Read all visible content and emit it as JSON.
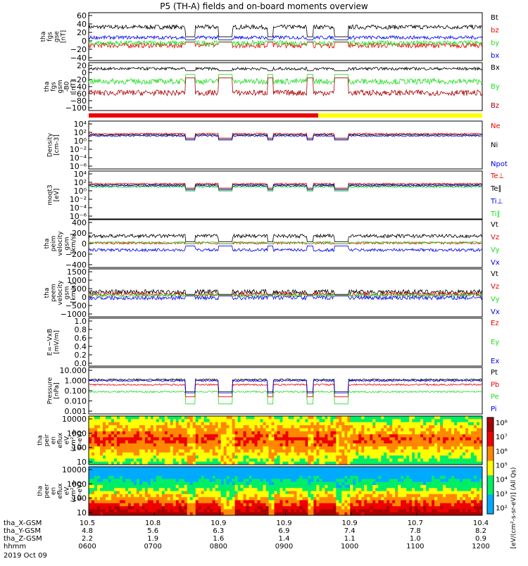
{
  "title": "P5 (TH-A) fields and on-board moments overview",
  "date_label": "2019 Oct 09",
  "colors": {
    "black": "#000000",
    "red": "#ee0000",
    "green": "#22dd22",
    "blue": "#0000ee",
    "darkred": "#aa0000",
    "yellow": "#ffff00"
  },
  "chart_data": [
    {
      "type": "line",
      "id": "fgs",
      "ylabel": [
        "tha",
        "fgs",
        "gse",
        "[nT]"
      ],
      "yticks": [
        "60",
        "40",
        "20",
        "0",
        "−20",
        "−40"
      ],
      "ylim": [
        -45,
        65
      ],
      "series": [
        {
          "name": "Bt",
          "color": "black",
          "level": 32,
          "amp": 5
        },
        {
          "name": "bz",
          "color": "red",
          "level": -10,
          "amp": 6
        },
        {
          "name": "by",
          "color": "green",
          "level": -5,
          "amp": 6
        },
        {
          "name": "bx",
          "color": "blue",
          "level": 8,
          "amp": 4
        }
      ]
    },
    {
      "type": "line",
      "id": "fgs-gsm",
      "ylabel": [
        "tha",
        "fgs",
        "gsm",
        "-B0",
        "[nT]"
      ],
      "yticks": [
        "20",
        "0",
        "−20",
        "−40",
        "−60",
        "−80",
        "−100"
      ],
      "ylim": [
        -110,
        25
      ],
      "series": [
        {
          "name": "Bx",
          "color": "black",
          "level": 8,
          "amp": 4
        },
        {
          "name": "By",
          "color": "green",
          "level": -28,
          "amp": 8
        },
        {
          "name": "Bz",
          "color": "darkred",
          "level": -60,
          "amp": 8
        }
      ]
    },
    {
      "type": "bar",
      "id": "mode-bar",
      "segments": [
        {
          "from": "0600",
          "to": "0930",
          "color": "red"
        },
        {
          "from": "0930",
          "to": "1200",
          "color": "yellow"
        }
      ]
    },
    {
      "type": "line",
      "id": "density",
      "scale": "log",
      "ylabel": [
        "Density",
        "[cm-3]"
      ],
      "yticks": [
        "10⁴",
        "10²",
        "10⁰",
        "10⁻²",
        "10⁻⁴",
        "10⁻⁶"
      ],
      "series": [
        {
          "name": "Ne",
          "color": "red"
        },
        {
          "name": "Ni",
          "color": "black"
        },
        {
          "name": "Npot",
          "color": "blue"
        }
      ]
    },
    {
      "type": "line",
      "id": "temperature",
      "scale": "log",
      "ylabel": [
        "moqt3",
        "[eV]"
      ],
      "yticks": [
        "10⁴",
        "10²",
        "10⁰",
        "10⁻²",
        "10⁻⁴",
        "10⁻⁶"
      ],
      "series": [
        {
          "name": "Te⊥",
          "color": "red"
        },
        {
          "name": "Te∥",
          "color": "black"
        },
        {
          "name": "Ti⊥",
          "color": "blue"
        },
        {
          "name": "Ti∥",
          "color": "green"
        }
      ]
    },
    {
      "type": "line",
      "id": "peim-velocity",
      "ylabel": [
        "tha",
        "peim",
        "velocity",
        "gsm",
        "[km/s]"
      ],
      "yticks": [
        "400",
        "200",
        "0",
        "−200",
        "−400"
      ],
      "ylim": [
        -400,
        420
      ],
      "series": [
        {
          "name": "Vt",
          "color": "black",
          "level": 140,
          "amp": 30
        },
        {
          "name": "Vz",
          "color": "red",
          "level": 20,
          "amp": 20
        },
        {
          "name": "Vy",
          "color": "green",
          "level": 30,
          "amp": 15
        },
        {
          "name": "Vx",
          "color": "blue",
          "level": -100,
          "amp": 25
        }
      ]
    },
    {
      "type": "line",
      "id": "peem-velocity",
      "ylabel": [
        "tha",
        "peem",
        "velocity",
        "gsm",
        "[km/s]"
      ],
      "yticks": [
        "1500",
        "1000",
        "500",
        "0",
        "−500",
        "−1000"
      ],
      "ylim": [
        -1300,
        1600
      ],
      "series": [
        {
          "name": "Vt",
          "color": "black",
          "level": 200,
          "amp": 150
        },
        {
          "name": "Vz",
          "color": "red",
          "level": 60,
          "amp": 120
        },
        {
          "name": "Vy",
          "color": "green",
          "level": 0,
          "amp": 100
        },
        {
          "name": "Vx",
          "color": "blue",
          "level": -150,
          "amp": 120
        }
      ]
    },
    {
      "type": "line",
      "id": "efield",
      "ylabel": [
        "E=−VxB",
        "[mV/m]"
      ],
      "yticks": [
        "1.0",
        "0.8",
        "0.6",
        "0.4",
        "0.2",
        "0.0"
      ],
      "ylim": [
        0,
        1
      ],
      "series": [
        {
          "name": "Ez",
          "color": "red"
        },
        {
          "name": "Ey",
          "color": "green"
        },
        {
          "name": "Ex",
          "color": "blue"
        }
      ]
    },
    {
      "type": "line",
      "id": "pressure",
      "scale": "log",
      "ylabel": [
        "Pressure",
        "[nPa]"
      ],
      "yticks": [
        "10.000",
        "1.000",
        "0.100",
        "0.010",
        "0.001"
      ],
      "series": [
        {
          "name": "Pt",
          "color": "black",
          "level": 1.0
        },
        {
          "name": "Pb",
          "color": "red",
          "level": 0.35
        },
        {
          "name": "Pe",
          "color": "green",
          "level": 0.08
        },
        {
          "name": "Pi",
          "color": "blue",
          "level": 0.8
        }
      ]
    },
    {
      "type": "heatmap",
      "id": "peir-spectrogram",
      "ylabel": [
        "tha",
        "peir",
        "en",
        "eflux",
        "eV",
        "(cm²-s-",
        "sr-eV)"
      ],
      "yticks": [
        "10000",
        "1000",
        "100",
        "10"
      ]
    },
    {
      "type": "heatmap",
      "id": "peer-spectrogram",
      "ylabel": [
        "tha",
        "peer",
        "en",
        "eflux",
        "eV",
        "(cm²-s-",
        "sr-eV)"
      ],
      "yticks": [
        "10000",
        "1000",
        "100",
        "10"
      ]
    }
  ],
  "colorbar": {
    "ticks": [
      "10⁸",
      "10⁷",
      "10⁶",
      "10⁵",
      "10⁴",
      "10³",
      "10²"
    ],
    "label": "[eV/(cm²-s-sr-eV)] (All Qs)"
  },
  "ephemeris": {
    "labels": [
      "tha_X-GSM",
      "tha_Y-GSM",
      "tha_Z-GSM",
      "hhmm"
    ],
    "columns": [
      {
        "x": "10.5",
        "y": "4.8",
        "z": "2.2",
        "t": "0600"
      },
      {
        "x": "10.8",
        "y": "5.6",
        "z": "1.9",
        "t": "0700"
      },
      {
        "x": "10.9",
        "y": "6.3",
        "z": "1.6",
        "t": "0800"
      },
      {
        "x": "10.9",
        "y": "6.9",
        "z": "1.4",
        "t": "0900"
      },
      {
        "x": "10.9",
        "y": "7.4",
        "z": "1.1",
        "t": "1000"
      },
      {
        "x": "10.7",
        "y": "7.8",
        "z": "1.0",
        "t": "1100"
      },
      {
        "x": "10.4",
        "y": "8.2",
        "z": "0.9",
        "t": "1200"
      }
    ]
  }
}
